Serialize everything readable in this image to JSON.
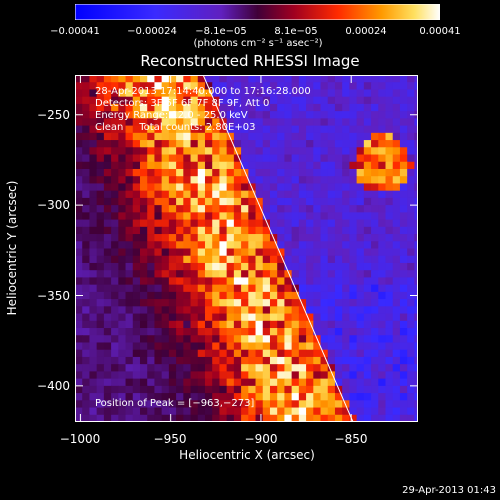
{
  "chart_data": {
    "type": "heatmap",
    "title": "Reconstructed RHESSI Image",
    "xlabel": "Heliocentric X (arcsec)",
    "ylabel": "Heliocentric Y (arcsec)",
    "xlim": [
      -1003,
      -813
    ],
    "ylim": [
      -420,
      -228
    ],
    "xticks": [
      "−1000",
      "−950",
      "−900",
      "−850"
    ],
    "xtick_values": [
      -1000,
      -950,
      -900,
      -850
    ],
    "yticks": [
      "−250",
      "−300",
      "−350",
      "−400"
    ],
    "ytick_values": [
      -250,
      -300,
      -350,
      -400
    ],
    "colorbar": {
      "range": [
        -0.00041,
        0.00041
      ],
      "tick_labels": [
        "−0.00041",
        "−0.00024",
        "−8.1e−05",
        "8.1e−05",
        "0.00024",
        "0.00041"
      ],
      "tick_values": [
        -0.00041,
        -0.00024,
        -8.1e-05,
        8.1e-05,
        0.00024,
        0.00041
      ],
      "unit_label": "(photons cm⁻² s⁻¹ asec⁻²)"
    },
    "annotations": [
      "28-Apr-2013 17:14:40.000 to 17:16:28.000",
      "Detectors: 3F 5F 6F 7F 8F 9F, Att 0",
      "Energy Range: 12.0 - 25.0 keV",
      "Clean     Total counts: 2.80E+03"
    ],
    "peak_label": "Position of Peak = [−963,−273]",
    "peak_position": [
      -963,
      -273
    ],
    "limb_line": {
      "x": [
        -932,
        -849
      ],
      "y": [
        -228,
        -420
      ]
    },
    "grid": false
  },
  "footer": {
    "timestamp": "29-Apr-2013 01:43"
  }
}
